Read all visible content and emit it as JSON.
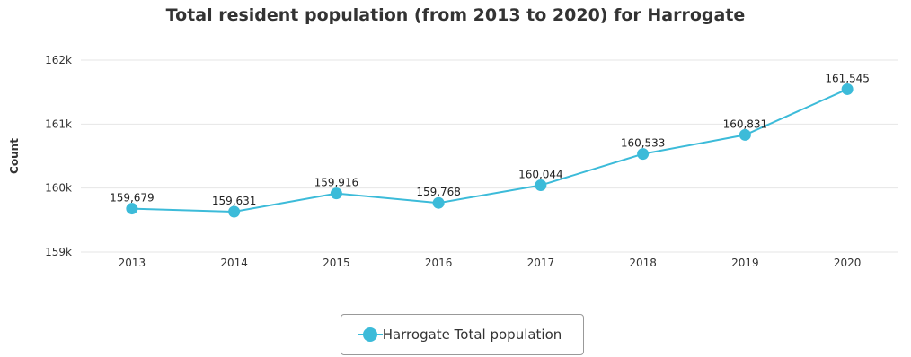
{
  "chart_data": {
    "type": "line",
    "title": "Total resident population (from 2013 to 2020) for Harrogate",
    "xlabel": "",
    "ylabel": "Count",
    "categories": [
      "2013",
      "2014",
      "2015",
      "2016",
      "2017",
      "2018",
      "2019",
      "2020"
    ],
    "series": [
      {
        "name": "Harrogate Total population",
        "values": [
          159679,
          159631,
          159916,
          159768,
          160044,
          160533,
          160831,
          161545
        ],
        "labels": [
          "159,679",
          "159,631",
          "159,916",
          "159,768",
          "160,044",
          "160,533",
          "160,831",
          "161,545"
        ]
      }
    ],
    "ylim": [
      159000,
      162000
    ],
    "yticks": [
      159000,
      160000,
      161000,
      162000
    ],
    "ytick_labels": [
      "159k",
      "160k",
      "161k",
      "162k"
    ],
    "grid": true,
    "legend_position": "bottom-center",
    "colors": {
      "series": "#3cbbd9",
      "grid": "#e6e6e6",
      "text": "#333333"
    }
  }
}
